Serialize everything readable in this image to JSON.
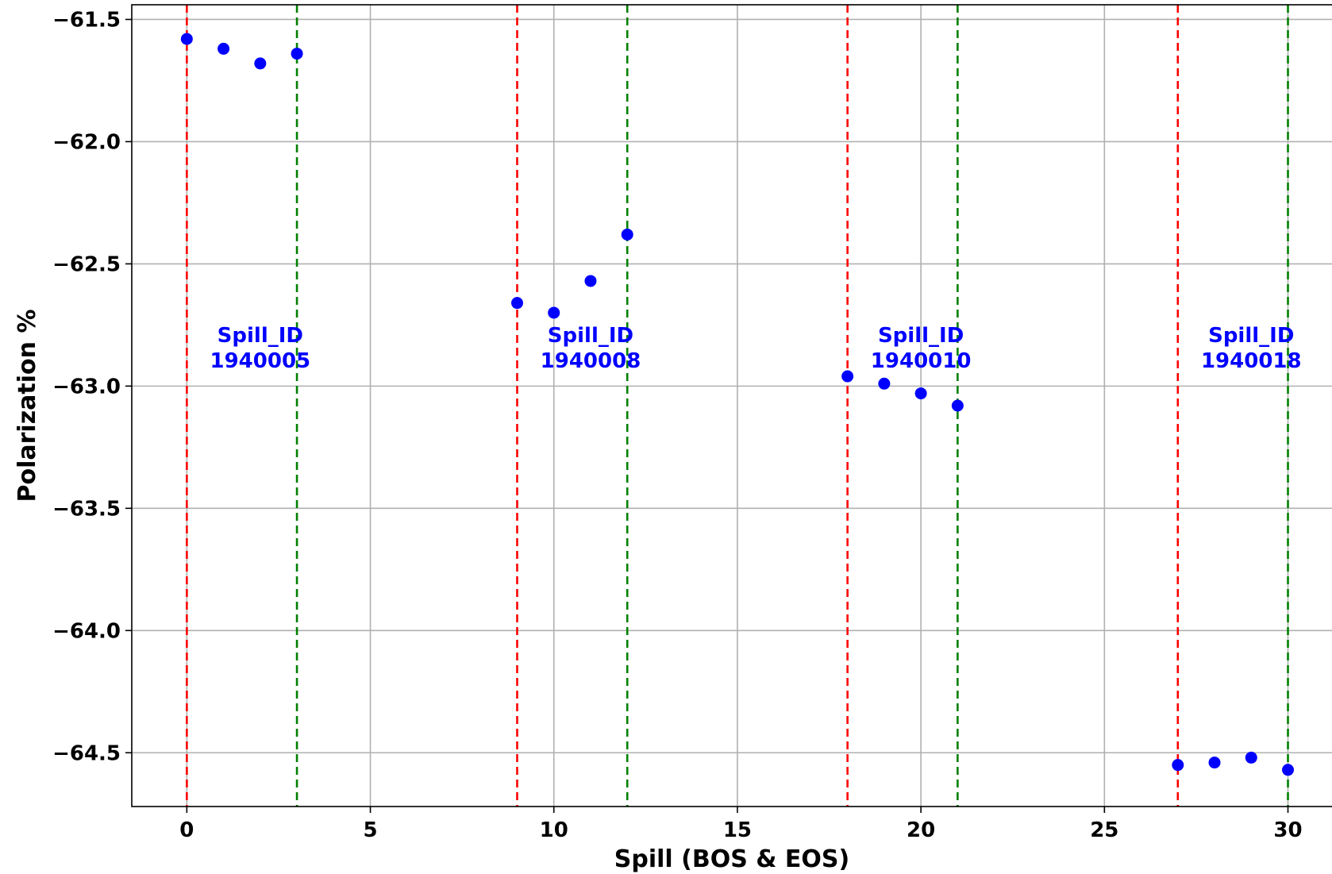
{
  "chart_data": {
    "type": "scatter",
    "xlabel": "Spill (BOS & EOS)",
    "ylabel": "Polarization %",
    "xlim": [
      -1.5,
      31.2
    ],
    "ylim": [
      -64.72,
      -61.44
    ],
    "xticks": [
      0,
      5,
      10,
      15,
      20,
      25,
      30
    ],
    "yticks": [
      -61.5,
      -62.0,
      -62.5,
      -63.0,
      -63.5,
      -64.0,
      -64.5
    ],
    "ytick_labels": [
      "−61.5",
      "−62.0",
      "−62.5",
      "−63.0",
      "−63.5",
      "−64.0",
      "−64.5"
    ],
    "grid": true,
    "point_color": "#0000ff",
    "points": [
      {
        "x": 0,
        "y": -61.58
      },
      {
        "x": 1,
        "y": -61.62
      },
      {
        "x": 2,
        "y": -61.68
      },
      {
        "x": 3,
        "y": -61.64
      },
      {
        "x": 9,
        "y": -62.66
      },
      {
        "x": 10,
        "y": -62.7
      },
      {
        "x": 11,
        "y": -62.57
      },
      {
        "x": 12,
        "y": -62.38
      },
      {
        "x": 18,
        "y": -62.96
      },
      {
        "x": 19,
        "y": -62.99
      },
      {
        "x": 20,
        "y": -63.03
      },
      {
        "x": 21,
        "y": -63.08
      },
      {
        "x": 27,
        "y": -64.55
      },
      {
        "x": 28,
        "y": -64.54
      },
      {
        "x": 29,
        "y": -64.52
      },
      {
        "x": 30,
        "y": -64.57
      }
    ],
    "vlines": [
      {
        "x": 0,
        "kind": "BOS",
        "color": "#ff0000"
      },
      {
        "x": 3,
        "kind": "EOS",
        "color": "#008000"
      },
      {
        "x": 9,
        "kind": "BOS",
        "color": "#ff0000"
      },
      {
        "x": 12,
        "kind": "EOS",
        "color": "#008000"
      },
      {
        "x": 18,
        "kind": "BOS",
        "color": "#ff0000"
      },
      {
        "x": 21,
        "kind": "EOS",
        "color": "#008000"
      },
      {
        "x": 27,
        "kind": "BOS",
        "color": "#ff0000"
      },
      {
        "x": 30,
        "kind": "EOS",
        "color": "#008000"
      }
    ],
    "annotations": [
      {
        "line1": "Spill_ID",
        "line2": "1940005",
        "x": 2.0,
        "y": -62.82
      },
      {
        "line1": "Spill_ID",
        "line2": "1940008",
        "x": 11.0,
        "y": -62.82
      },
      {
        "line1": "Spill_ID",
        "line2": "1940010",
        "x": 20.0,
        "y": -62.82
      },
      {
        "line1": "Spill_ID",
        "line2": "1940018",
        "x": 29.0,
        "y": -62.82
      }
    ],
    "annotation_color": "#0000ff"
  }
}
